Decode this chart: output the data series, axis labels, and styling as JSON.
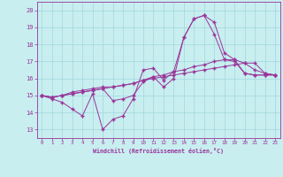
{
  "xlabel": "Windchill (Refroidissement éolien,°C)",
  "bg_color": "#c8eef0",
  "line_color": "#993399",
  "grid_color": "#a0d8dc",
  "spine_color": "#993399",
  "xlim": [
    -0.5,
    23.5
  ],
  "ylim": [
    12.5,
    20.5
  ],
  "yticks": [
    13,
    14,
    15,
    16,
    17,
    18,
    19,
    20
  ],
  "xticks": [
    0,
    1,
    2,
    3,
    4,
    5,
    6,
    7,
    8,
    9,
    10,
    11,
    12,
    13,
    14,
    15,
    16,
    17,
    18,
    19,
    20,
    21,
    22,
    23
  ],
  "series": [
    [
      15.0,
      14.8,
      14.6,
      14.2,
      13.8,
      15.1,
      13.0,
      13.6,
      13.8,
      14.8,
      16.5,
      16.6,
      15.9,
      16.4,
      18.4,
      19.5,
      19.7,
      19.3,
      17.5,
      17.1,
      16.3,
      16.2,
      16.2,
      16.2
    ],
    [
      15.0,
      14.9,
      15.0,
      15.1,
      15.2,
      15.3,
      15.4,
      14.7,
      14.8,
      15.0,
      15.8,
      16.1,
      15.5,
      16.0,
      18.4,
      19.5,
      19.7,
      18.6,
      17.1,
      17.0,
      16.3,
      16.2,
      16.2,
      16.2
    ],
    [
      15.0,
      14.9,
      15.0,
      15.2,
      15.3,
      15.4,
      15.5,
      15.5,
      15.6,
      15.7,
      15.9,
      16.1,
      16.2,
      16.4,
      16.5,
      16.7,
      16.8,
      17.0,
      17.1,
      17.1,
      16.9,
      16.5,
      16.3,
      16.2
    ],
    [
      15.0,
      14.9,
      15.0,
      15.1,
      15.2,
      15.3,
      15.4,
      15.5,
      15.6,
      15.7,
      15.9,
      16.0,
      16.1,
      16.2,
      16.3,
      16.4,
      16.5,
      16.6,
      16.7,
      16.8,
      16.9,
      16.9,
      16.3,
      16.2
    ]
  ]
}
